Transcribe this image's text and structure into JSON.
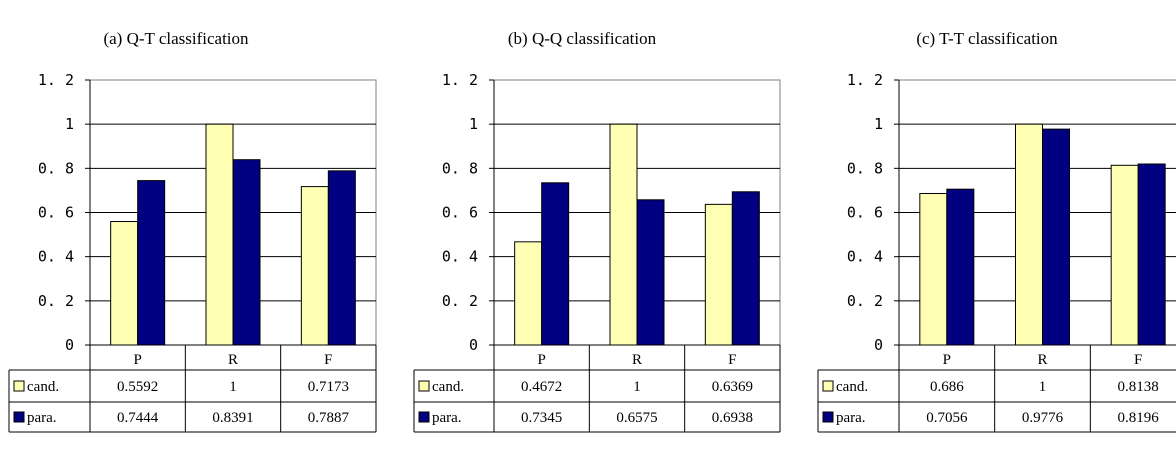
{
  "colors": {
    "cand": "#FFFFB3",
    "para": "#000080",
    "axis": "#000000",
    "grid": "#000000",
    "frame": "#808080"
  },
  "chart_data": [
    {
      "type": "bar",
      "title": "(a) Q-T classification",
      "categories": [
        "P",
        "R",
        "F"
      ],
      "ylim": [
        0,
        1.2
      ],
      "yticks": [
        "0",
        "0. 2",
        "0. 4",
        "0. 6",
        "0. 8",
        "1",
        "1. 2"
      ],
      "grid": true,
      "legend": "data-table",
      "series": [
        {
          "name": "cand.",
          "values": [
            0.5592,
            1,
            0.7173
          ],
          "labels": [
            "0.5592",
            "1",
            "0.7173"
          ]
        },
        {
          "name": "para.",
          "values": [
            0.7444,
            0.8391,
            0.7887
          ],
          "labels": [
            "0.7444",
            "0.8391",
            "0.7887"
          ]
        }
      ]
    },
    {
      "type": "bar",
      "title": "(b) Q-Q classification",
      "categories": [
        "P",
        "R",
        "F"
      ],
      "ylim": [
        0,
        1.2
      ],
      "yticks": [
        "0",
        "0. 2",
        "0. 4",
        "0. 6",
        "0. 8",
        "1",
        "1. 2"
      ],
      "grid": true,
      "legend": "data-table",
      "series": [
        {
          "name": "cand.",
          "values": [
            0.4672,
            1,
            0.6369
          ],
          "labels": [
            "0.4672",
            "1",
            "0.6369"
          ]
        },
        {
          "name": "para.",
          "values": [
            0.7345,
            0.6575,
            0.6938
          ],
          "labels": [
            "0.7345",
            "0.6575",
            "0.6938"
          ]
        }
      ]
    },
    {
      "type": "bar",
      "title": "(c) T-T classification",
      "categories": [
        "P",
        "R",
        "F"
      ],
      "ylim": [
        0,
        1.2
      ],
      "yticks": [
        "0",
        "0. 2",
        "0. 4",
        "0. 6",
        "0. 8",
        "1",
        "1. 2"
      ],
      "grid": true,
      "legend": "data-table",
      "series": [
        {
          "name": "cand.",
          "values": [
            0.686,
            1,
            0.8138
          ],
          "labels": [
            "0.686",
            "1",
            "0.8138"
          ]
        },
        {
          "name": "para.",
          "values": [
            0.7056,
            0.9776,
            0.8196
          ],
          "labels": [
            "0.7056",
            "0.9776",
            "0.8196"
          ]
        }
      ]
    }
  ]
}
